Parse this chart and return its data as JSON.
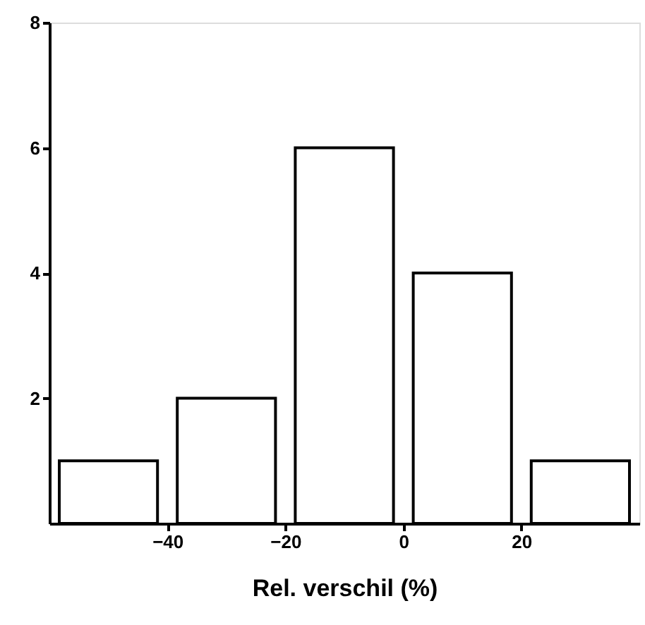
{
  "chart_data": {
    "type": "histogram",
    "bins": [
      -60,
      -40,
      -20,
      0,
      20,
      40
    ],
    "values": [
      1,
      2,
      6,
      4,
      1
    ],
    "color": "#ffffff",
    "xlabel": "Rel. verschil (%)",
    "xlim": [
      -60,
      40
    ],
    "xticks": [
      -40,
      -20,
      0,
      20
    ],
    "ylim": [
      0,
      8
    ],
    "yticks": [
      2,
      4,
      6,
      8
    ],
    "grid": false
  }
}
